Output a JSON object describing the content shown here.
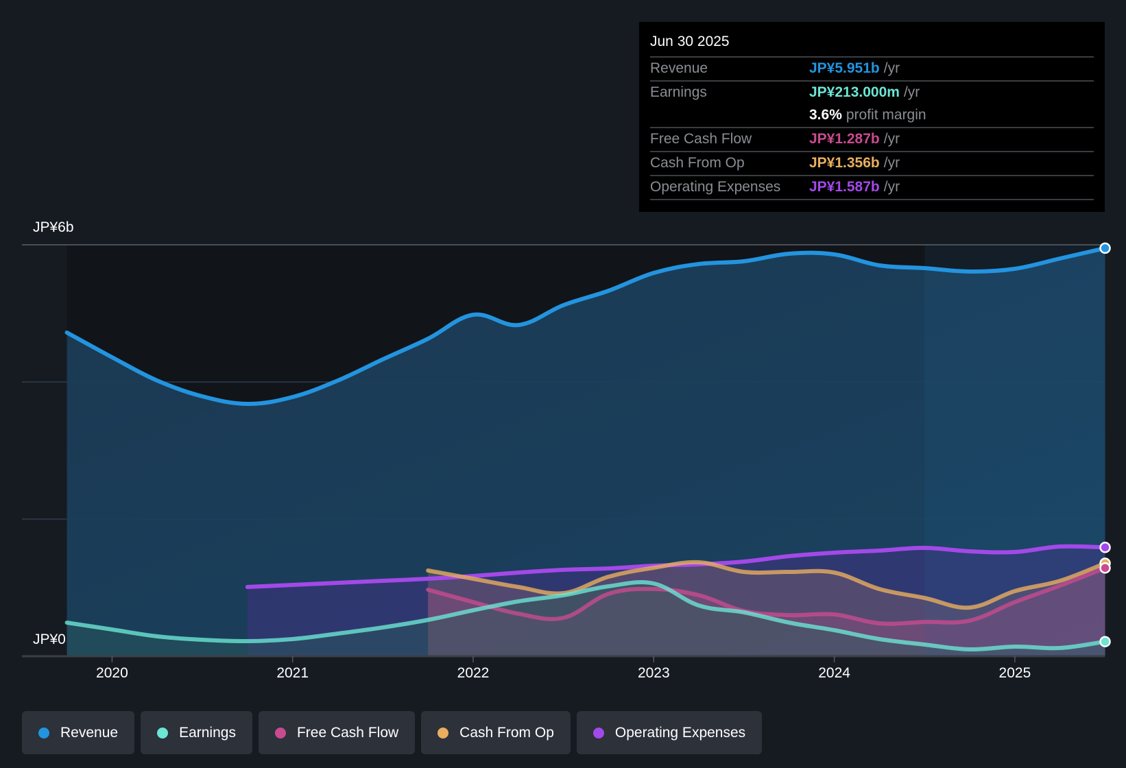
{
  "tooltip": {
    "date": "Jun 30 2025",
    "rows": [
      {
        "label": "Revenue",
        "value": "JP¥5.951b",
        "unit": "/yr",
        "color": "#2394df"
      },
      {
        "label": "Earnings",
        "value": "JP¥213.000m",
        "unit": "/yr",
        "color": "#6ce5d3"
      },
      {
        "label": "",
        "value": "3.6%",
        "unit": "profit margin",
        "color": "#ffffff"
      },
      {
        "label": "Free Cash Flow",
        "value": "JP¥1.287b",
        "unit": "/yr",
        "color": "#c84b8f"
      },
      {
        "label": "Cash From Op",
        "value": "JP¥1.356b",
        "unit": "/yr",
        "color": "#e9ae5f"
      },
      {
        "label": "Operating Expenses",
        "value": "JP¥1.587b",
        "unit": "/yr",
        "color": "#a349e8"
      }
    ]
  },
  "legend": [
    {
      "label": "Revenue",
      "color": "#2394df"
    },
    {
      "label": "Earnings",
      "color": "#6ce5d3"
    },
    {
      "label": "Free Cash Flow",
      "color": "#c84b8f"
    },
    {
      "label": "Cash From Op",
      "color": "#e9ae5f"
    },
    {
      "label": "Operating Expenses",
      "color": "#a349e8"
    }
  ],
  "chart_data": {
    "type": "area",
    "title": "",
    "xlabel": "",
    "ylabel": "",
    "ylim": [
      0,
      6
    ],
    "y_unit": "JP¥ billions",
    "y_tick_labels": [
      "JP¥0",
      "JP¥6b"
    ],
    "x_tick_labels": [
      "2020",
      "2021",
      "2022",
      "2023",
      "2024",
      "2025"
    ],
    "x_ticks": [
      2020,
      2021,
      2022,
      2023,
      2024,
      2025
    ],
    "xlim": [
      2019.5,
      2025.5
    ],
    "highlight_from": 2024.5,
    "grid": true,
    "legend_position": "bottom-left",
    "series": [
      {
        "name": "Revenue",
        "color": "#2394df",
        "x": [
          2019.75,
          2020.0,
          2020.25,
          2020.5,
          2020.75,
          2021.0,
          2021.25,
          2021.5,
          2021.75,
          2022.0,
          2022.25,
          2022.5,
          2022.75,
          2023.0,
          2023.25,
          2023.5,
          2023.75,
          2024.0,
          2024.25,
          2024.5,
          2024.75,
          2025.0,
          2025.25,
          2025.5
        ],
        "values": [
          4.72,
          4.36,
          4.02,
          3.79,
          3.68,
          3.78,
          4.02,
          4.33,
          4.63,
          4.98,
          4.83,
          5.12,
          5.33,
          5.59,
          5.72,
          5.76,
          5.87,
          5.86,
          5.7,
          5.66,
          5.61,
          5.65,
          5.8,
          5.951
        ]
      },
      {
        "name": "Earnings",
        "color": "#6ce5d3",
        "x": [
          2019.75,
          2020.0,
          2020.25,
          2020.5,
          2020.75,
          2021.0,
          2021.25,
          2021.5,
          2021.75,
          2022.0,
          2022.25,
          2022.5,
          2022.75,
          2023.0,
          2023.25,
          2023.5,
          2023.75,
          2024.0,
          2024.25,
          2024.5,
          2024.75,
          2025.0,
          2025.25,
          2025.5
        ],
        "values": [
          0.49,
          0.39,
          0.29,
          0.24,
          0.22,
          0.25,
          0.33,
          0.42,
          0.53,
          0.67,
          0.8,
          0.89,
          1.02,
          1.06,
          0.74,
          0.64,
          0.49,
          0.38,
          0.25,
          0.17,
          0.1,
          0.14,
          0.12,
          0.213
        ]
      },
      {
        "name": "Free Cash Flow",
        "color": "#c84b8f",
        "x": [
          2021.75,
          2022.0,
          2022.25,
          2022.5,
          2022.75,
          2023.0,
          2023.25,
          2023.5,
          2023.75,
          2024.0,
          2024.25,
          2024.5,
          2024.75,
          2025.0,
          2025.25,
          2025.5
        ],
        "values": [
          0.97,
          0.79,
          0.62,
          0.56,
          0.91,
          0.98,
          0.89,
          0.66,
          0.6,
          0.61,
          0.48,
          0.5,
          0.52,
          0.79,
          1.03,
          1.287
        ]
      },
      {
        "name": "Cash From Op",
        "color": "#e9ae5f",
        "x": [
          2021.75,
          2022.0,
          2022.25,
          2022.5,
          2022.75,
          2023.0,
          2023.25,
          2023.5,
          2023.75,
          2024.0,
          2024.25,
          2024.5,
          2024.75,
          2025.0,
          2025.25,
          2025.5
        ],
        "values": [
          1.25,
          1.13,
          1.01,
          0.92,
          1.16,
          1.29,
          1.37,
          1.23,
          1.23,
          1.22,
          0.98,
          0.85,
          0.71,
          0.95,
          1.1,
          1.356
        ]
      },
      {
        "name": "Operating Expenses",
        "color": "#a349e8",
        "x": [
          2020.75,
          2021.0,
          2021.25,
          2021.5,
          2021.75,
          2022.0,
          2022.25,
          2022.5,
          2022.75,
          2023.0,
          2023.25,
          2023.5,
          2023.75,
          2024.0,
          2024.25,
          2024.5,
          2024.75,
          2025.0,
          2025.25,
          2025.5
        ],
        "values": [
          1.01,
          1.04,
          1.07,
          1.1,
          1.13,
          1.17,
          1.22,
          1.26,
          1.28,
          1.32,
          1.34,
          1.38,
          1.46,
          1.51,
          1.54,
          1.58,
          1.53,
          1.52,
          1.6,
          1.587
        ]
      }
    ]
  }
}
